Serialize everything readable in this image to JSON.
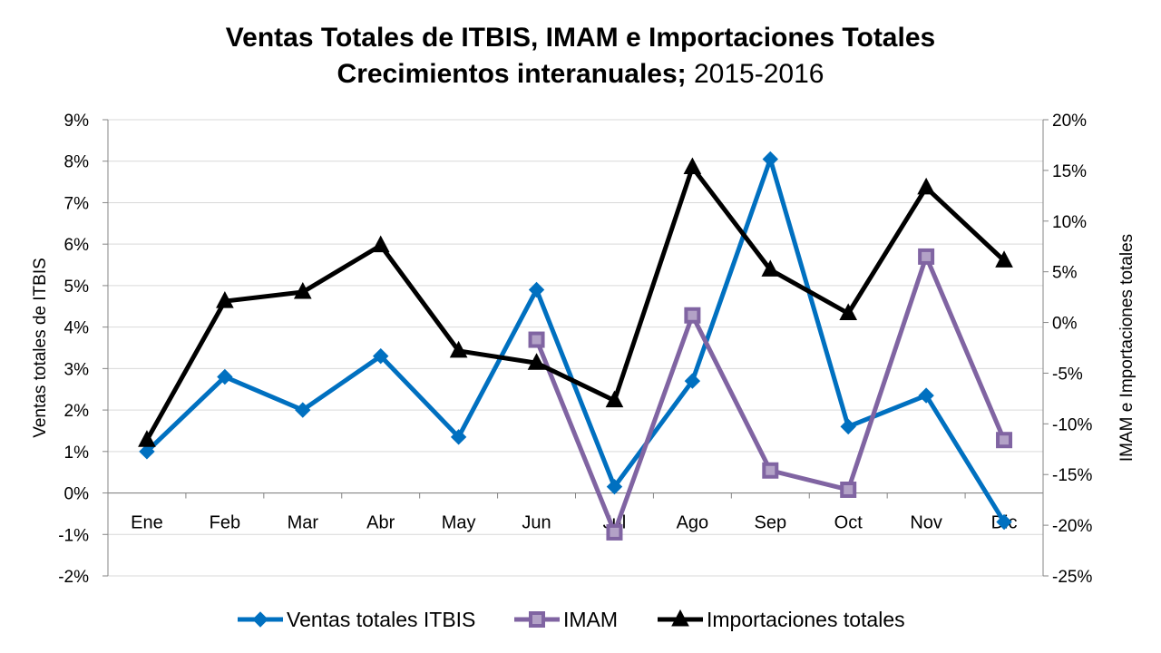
{
  "chart_data": {
    "type": "line",
    "title_line1": "Ventas Totales de ITBIS, IMAM e Importaciones Totales",
    "title_line2_bold": "Crecimientos interanuales;",
    "title_line2_rest": " 2015-2016",
    "categories": [
      "Ene",
      "Feb",
      "Mar",
      "Abr",
      "May",
      "Jun",
      "Jul",
      "Ago",
      "Sep",
      "Oct",
      "Nov",
      "Dic"
    ],
    "left_axis": {
      "label": "Ventas totales de ITBIS",
      "min": -2,
      "max": 9,
      "step": 1,
      "ticks": [
        "9%",
        "8%",
        "7%",
        "6%",
        "5%",
        "4%",
        "3%",
        "2%",
        "1%",
        "0%",
        "-1%",
        "-2%"
      ]
    },
    "right_axis": {
      "label": "IMAM e Importaciones totales",
      "min": -25,
      "max": 20,
      "step": 5,
      "ticks": [
        "20%",
        "15%",
        "10%",
        "5%",
        "0%",
        "-5%",
        "-10%",
        "-15%",
        "-20%",
        "-25%"
      ]
    },
    "grid": true,
    "legend_position": "bottom",
    "series": [
      {
        "name": "Ventas totales ITBIS",
        "axis": "left",
        "color": "#0070C0",
        "marker": "diamond",
        "values": [
          1.0,
          2.8,
          2.0,
          3.3,
          1.35,
          4.9,
          0.15,
          2.7,
          8.05,
          1.6,
          2.35,
          -0.7
        ]
      },
      {
        "name": "IMAM",
        "axis": "right",
        "color": "#8064A2",
        "marker": "square",
        "values": [
          null,
          null,
          null,
          null,
          null,
          -1.7,
          -20.7,
          0.7,
          -14.6,
          -16.5,
          6.5,
          -11.6
        ]
      },
      {
        "name": "Importaciones totales",
        "axis": "right",
        "color": "#000000",
        "marker": "triangle",
        "values": [
          -11.6,
          2.1,
          3.0,
          7.6,
          -2.8,
          -4.0,
          -7.7,
          15.3,
          5.2,
          0.9,
          13.3,
          6.1
        ]
      }
    ]
  }
}
